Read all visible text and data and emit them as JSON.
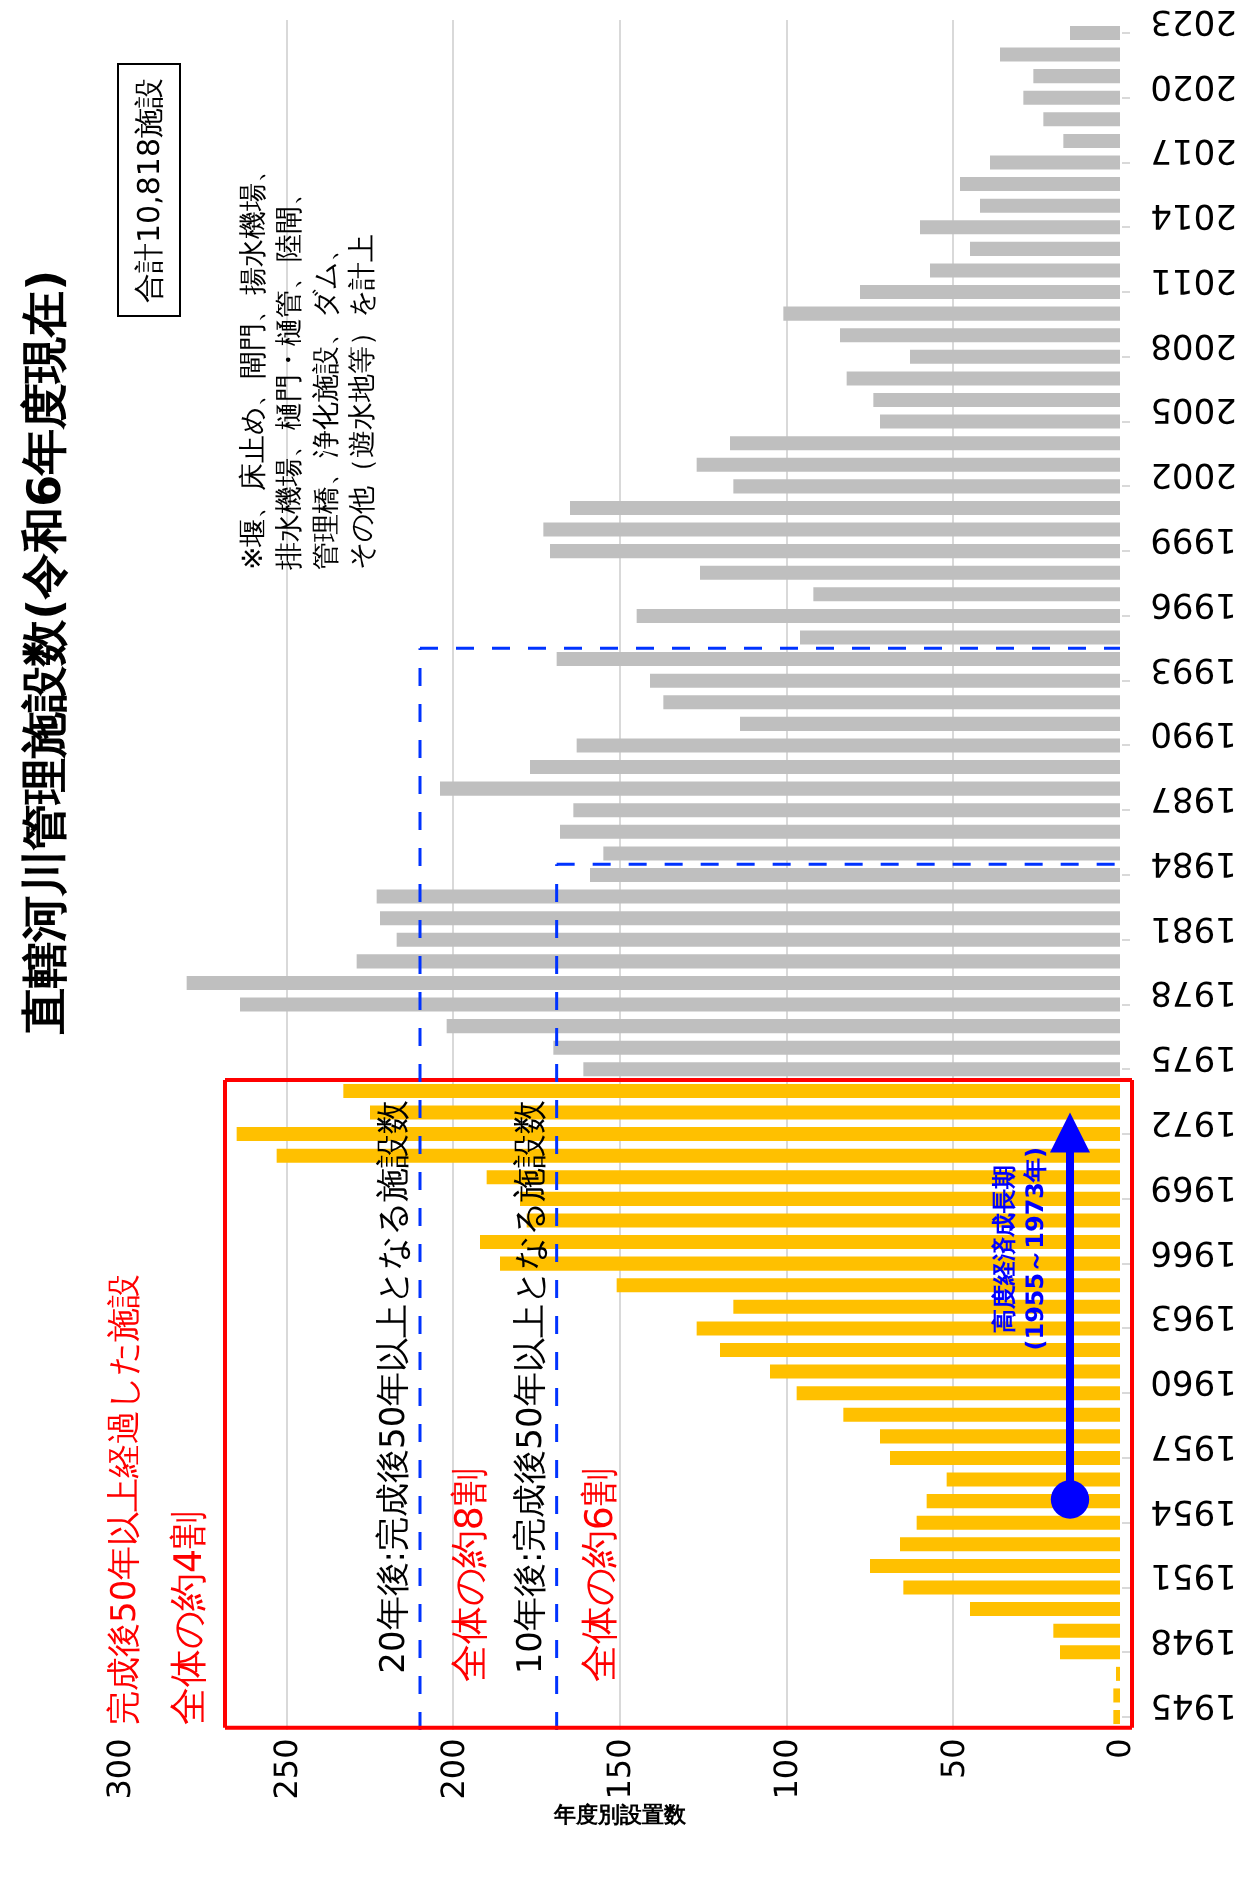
{
  "chart_data": {
    "type": "bar",
    "orientation": "horizontal",
    "title": "直轄河川管理施設数(令和6年度現在)",
    "xlabel": "年度別設置数",
    "series": [
      {
        "x": [
          1945,
          1946,
          1947,
          1948,
          1949,
          1950,
          1951,
          1952,
          1953,
          1954,
          1955,
          1956,
          1957,
          1958,
          1959,
          1960,
          1961,
          1962,
          1963,
          1964,
          1965,
          1966,
          1967,
          1968,
          1969,
          1970,
          1971,
          1972,
          1973,
          1974,
          1975,
          1976,
          1977,
          1978,
          1979,
          1980,
          1981,
          1982,
          1983,
          1984,
          1985,
          1986,
          1987,
          1988,
          1989,
          1990,
          1991,
          1992,
          1993,
          1994,
          1995,
          1996,
          1997,
          1998,
          1999,
          2000,
          2001,
          2002,
          2003,
          2004,
          2005,
          2006,
          2007,
          2008,
          2009,
          2010,
          2011,
          2012,
          2013,
          2014,
          2015,
          2016,
          2017,
          2018,
          2019,
          2020,
          2021,
          2022,
          2023
        ],
        "values": [
          2,
          2,
          1,
          18,
          20,
          45,
          65,
          75,
          66,
          61,
          58,
          52,
          69,
          72,
          83,
          97,
          105,
          120,
          127,
          116,
          151,
          186,
          192,
          178,
          180,
          190,
          253,
          265,
          225,
          233,
          161,
          170,
          202,
          264,
          280,
          229,
          217,
          222,
          223,
          159,
          155,
          168,
          164,
          204,
          177,
          163,
          114,
          137,
          141,
          169,
          96,
          145,
          92,
          126,
          171,
          173,
          165,
          116,
          127,
          117,
          72,
          74,
          82,
          63,
          84,
          101,
          78,
          57,
          45,
          60,
          42,
          48,
          39,
          17,
          23,
          29,
          26,
          36,
          15
        ],
        "colors": [
          "#ffc000",
          "#ffc000",
          "#ffc000",
          "#ffc000",
          "#ffc000",
          "#ffc000",
          "#ffc000",
          "#ffc000",
          "#ffc000",
          "#ffc000",
          "#ffc000",
          "#ffc000",
          "#ffc000",
          "#ffc000",
          "#ffc000",
          "#ffc000",
          "#ffc000",
          "#ffc000",
          "#ffc000",
          "#ffc000",
          "#ffc000",
          "#ffc000",
          "#ffc000",
          "#ffc000",
          "#ffc000",
          "#ffc000",
          "#ffc000",
          "#ffc000",
          "#ffc000",
          "#ffc000",
          "#bfbfbf",
          "#bfbfbf",
          "#bfbfbf",
          "#bfbfbf",
          "#bfbfbf",
          "#bfbfbf",
          "#bfbfbf",
          "#bfbfbf",
          "#bfbfbf",
          "#bfbfbf",
          "#bfbfbf",
          "#bfbfbf",
          "#bfbfbf",
          "#bfbfbf",
          "#bfbfbf",
          "#bfbfbf",
          "#bfbfbf",
          "#bfbfbf",
          "#bfbfbf",
          "#bfbfbf",
          "#bfbfbf",
          "#bfbfbf",
          "#bfbfbf",
          "#bfbfbf",
          "#bfbfbf",
          "#bfbfbf",
          "#bfbfbf",
          "#bfbfbf",
          "#bfbfbf",
          "#bfbfbf",
          "#bfbfbf",
          "#bfbfbf",
          "#bfbfbf",
          "#bfbfbf",
          "#bfbfbf",
          "#bfbfbf",
          "#bfbfbf",
          "#bfbfbf",
          "#bfbfbf",
          "#bfbfbf",
          "#bfbfbf",
          "#bfbfbf",
          "#bfbfbf",
          "#bfbfbf",
          "#bfbfbf",
          "#bfbfbf",
          "#bfbfbf",
          "#bfbfbf",
          "#bfbfbf"
        ]
      }
    ],
    "xlim": [
      300,
      0
    ],
    "xticks": [
      0,
      50,
      100,
      150,
      200,
      250,
      300
    ],
    "ylim": [
      1944.4,
      2023.6
    ],
    "yticks": [
      1945,
      1948,
      1951,
      1954,
      1957,
      1960,
      1963,
      1966,
      1969,
      1972,
      1975,
      1978,
      1981,
      1984,
      1987,
      1990,
      1993,
      1996,
      1999,
      2002,
      2005,
      2008,
      2011,
      2014,
      2017,
      2020,
      2023
    ],
    "grid": "x",
    "ref_lines": [
      {
        "axis": "y",
        "value": 1974.5,
        "label": "完成後50年以上経過した施設",
        "color": "#ff0000",
        "line_style": "solid"
      },
      {
        "axis": "y",
        "value": 1994.5,
        "color": "#0033ff",
        "line_style": "dashed"
      },
      {
        "axis": "y",
        "value": 1984.5,
        "color": "#0033ff",
        "line_style": "dashed"
      },
      {
        "axis": "x",
        "value": 210,
        "label": "20年後:完成後50年以上となる施設数",
        "color": "#0033ff",
        "line_style": "dashed"
      },
      {
        "axis": "x",
        "value": 169,
        "label": "10年後:完成後50年以上となる施設数",
        "color": "#0033ff",
        "line_style": "dashed"
      }
    ],
    "annotations": [
      "全体の約4割",
      "全体の約8割",
      "全体の約6割",
      "合計10,818施設",
      "※堰、床止め、閘門、揚水機場、排水機場、樋門・樋管、陸閘、管理橋、浄化施設、ダム、その他（遊水地等）を計上",
      {
        "text": "高度経済成長期\n(1955～1973年)",
        "x": 15,
        "y": 1973
      }
    ]
  }
}
